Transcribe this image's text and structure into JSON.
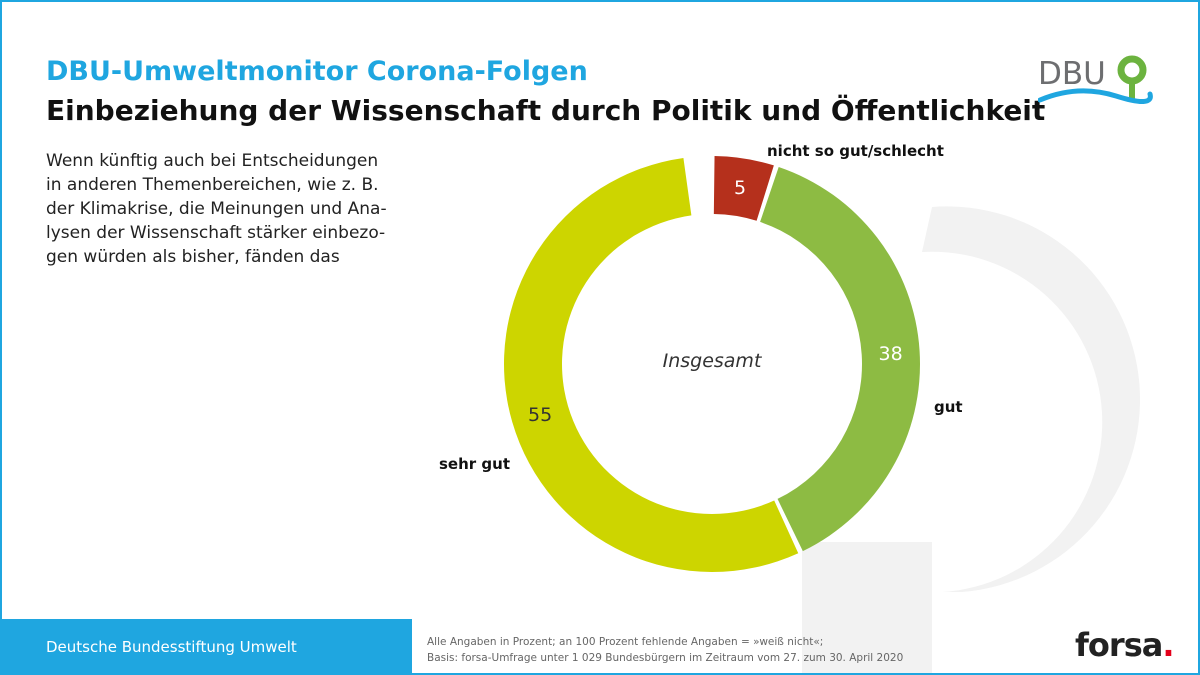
{
  "header": {
    "supertitle": "DBU-Umweltmonitor Corona-Folgen",
    "title": "Einbeziehung der Wissenschaft durch Politik und Öffentlichkeit"
  },
  "question_lines": [
    "Wenn künftig auch bei Entscheidungen",
    "in anderen Themenbereichen, wie z. B.",
    "der Klimakrise, die Meinungen und Ana-",
    "lysen der Wissenschaft stärker einbezo-",
    "gen würden als bisher, fänden das"
  ],
  "logo": {
    "text": "DBU",
    "color": "#6d6e70",
    "accent": "#6cb33f",
    "wave": "#1fa6e0"
  },
  "chart_data": {
    "type": "pie",
    "variant": "donut",
    "center_label": "Insgesamt",
    "slices": [
      {
        "label": "nicht so gut/schlecht",
        "value": 5,
        "color": "#b5301c"
      },
      {
        "label": "gut",
        "value": 38,
        "color": "#8dbb43"
      },
      {
        "label": "sehr gut",
        "value": 55,
        "color": "#cdd500"
      }
    ],
    "total": 100,
    "start_angle_deg": 0,
    "direction": "clockwise"
  },
  "footer": {
    "organization": "Deutsche Bundesstiftung Umwelt",
    "notes": [
      "Alle Angaben in Prozent; an 100 Prozent fehlende Angaben = »weiß nicht«;",
      "Basis: forsa-Umfrage unter 1 029 Bundesbürgern im Zeitraum vom 27. zum 30. April 2020"
    ],
    "brand": "forsa",
    "brand_dot": "."
  }
}
